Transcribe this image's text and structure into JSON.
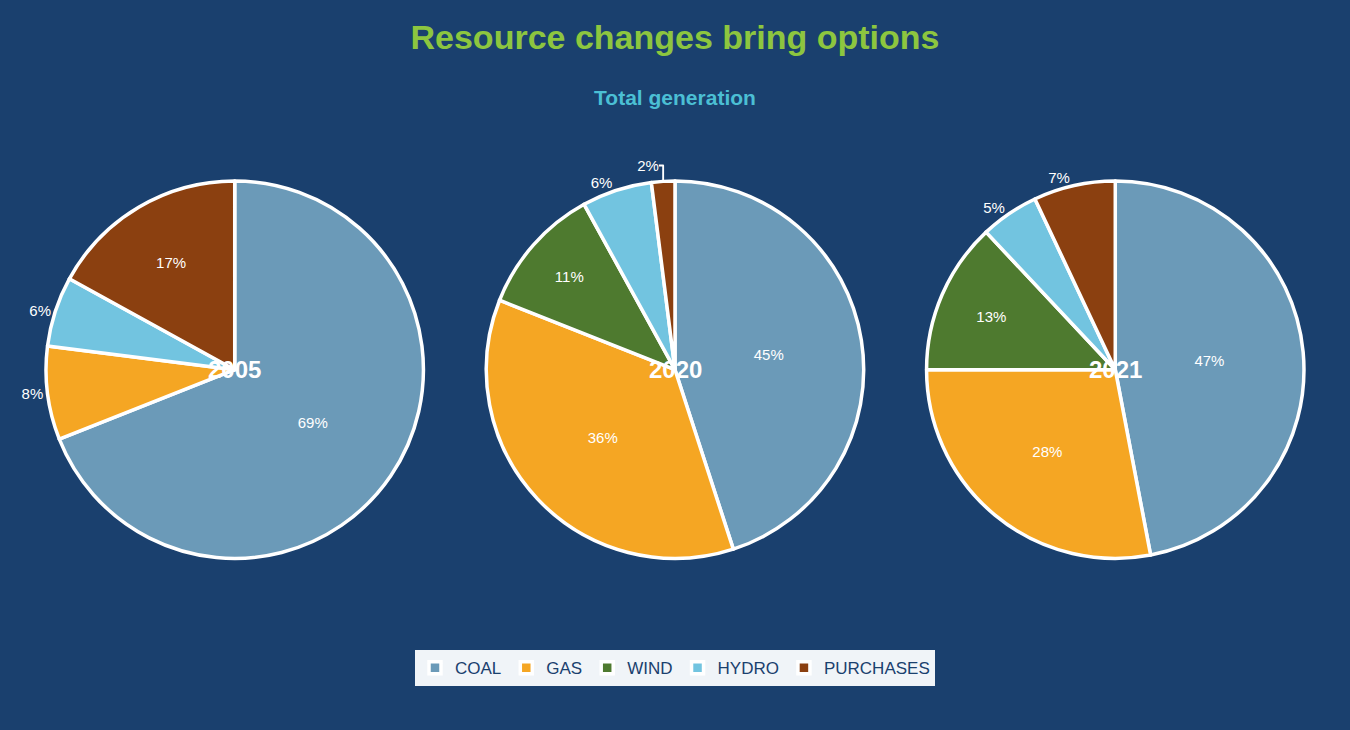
{
  "chart_data": {
    "type": "pie",
    "title": "Resource changes bring options",
    "subtitle": "Total generation",
    "categories": [
      "COAL",
      "GAS",
      "WIND",
      "HYDRO",
      "PURCHASES"
    ],
    "colors": [
      "#6b9ab8",
      "#f5a623",
      "#4e7a2f",
      "#72c4e0",
      "#8b4010"
    ],
    "series": [
      {
        "name": "2005",
        "values": [
          69,
          8,
          null,
          6,
          17
        ],
        "value_labels": [
          "69%",
          "8%",
          null,
          "6%",
          "17%"
        ]
      },
      {
        "name": "2020",
        "values": [
          45,
          36,
          11,
          6,
          2
        ],
        "value_labels": [
          "45%",
          "36%",
          "11%",
          "6%",
          "2%"
        ]
      },
      {
        "name": "2021",
        "values": [
          47,
          28,
          13,
          5,
          7
        ],
        "value_labels": [
          "47%",
          "28%",
          "13%",
          "5%",
          "7%"
        ]
      }
    ],
    "data_labels": true,
    "legend": "bottom"
  }
}
